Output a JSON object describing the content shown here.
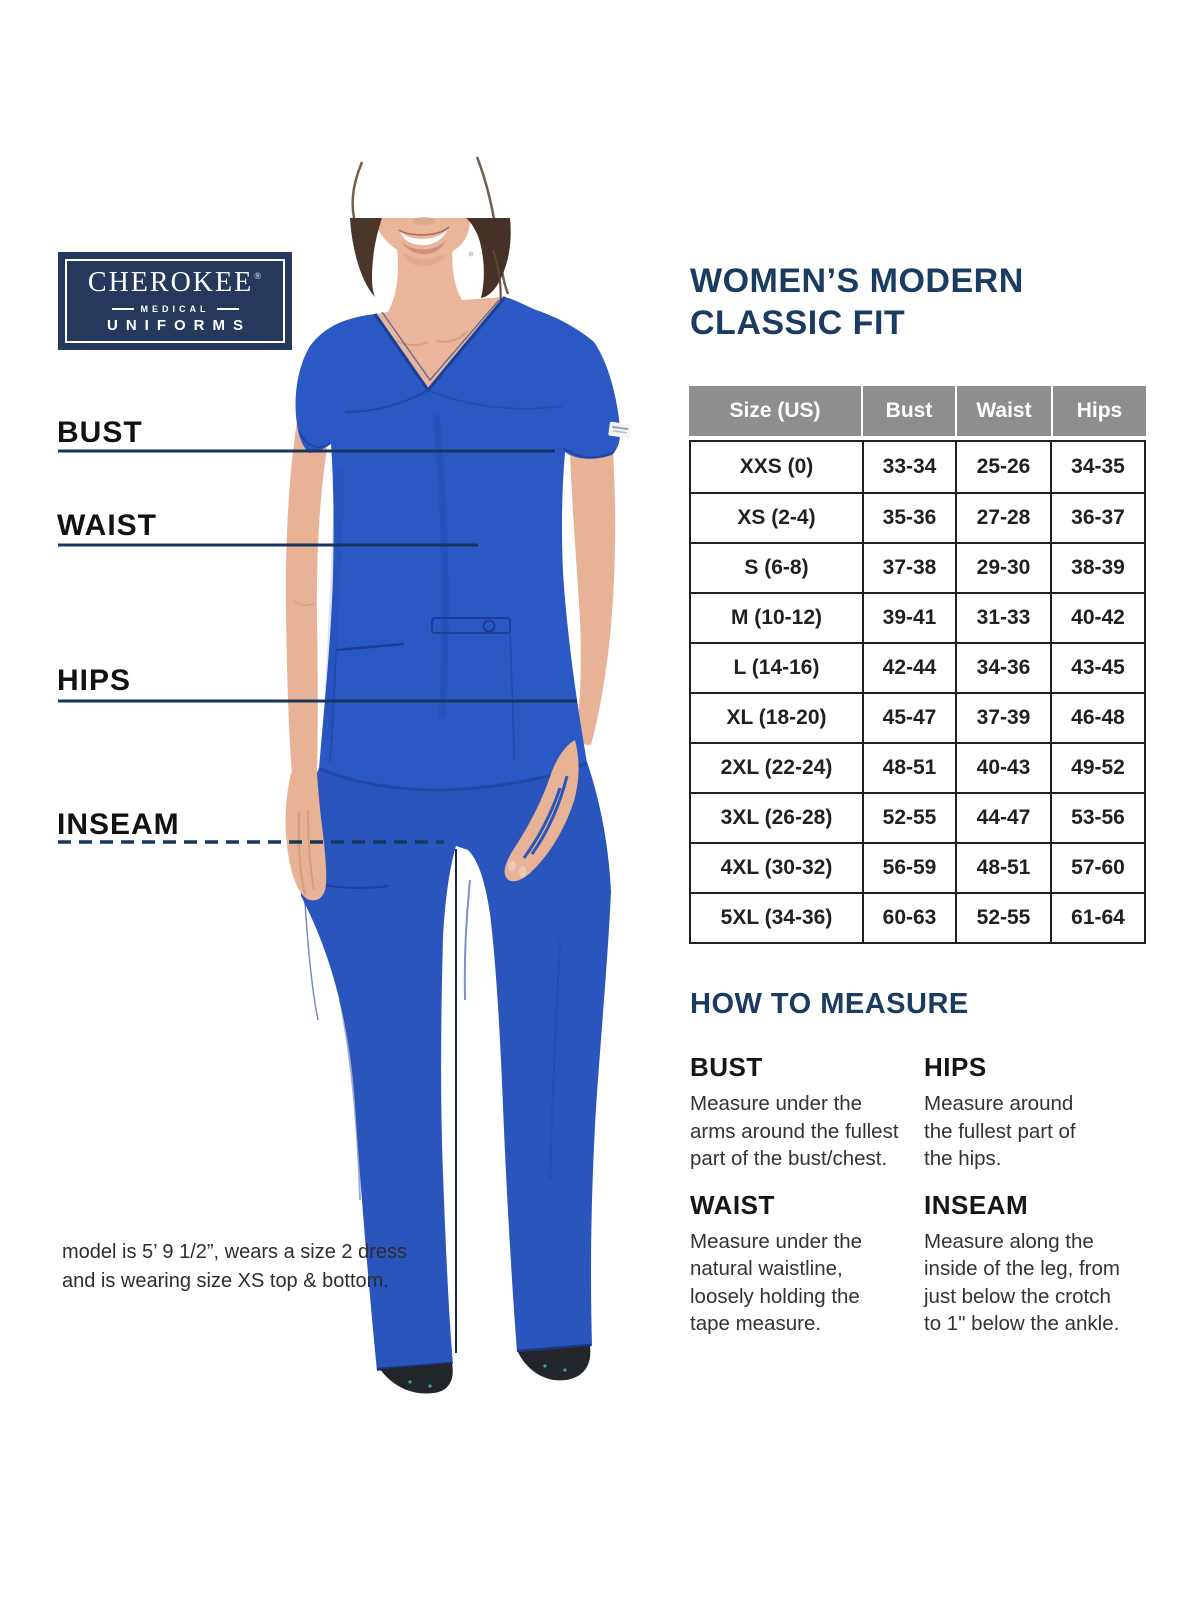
{
  "brand": {
    "name": "CHEROKEE",
    "reg": "®",
    "medical": "MEDICAL",
    "uniforms": "UNIFORMS"
  },
  "title": {
    "line1": "WOMEN’S MODERN",
    "line2": "CLASSIC FIT"
  },
  "figure_labels": {
    "bust": "BUST",
    "waist": "WAIST",
    "hips": "HIPS",
    "inseam": "INSEAM"
  },
  "size_table": {
    "headers": [
      "Size (US)",
      "Bust",
      "Waist",
      "Hips"
    ],
    "rows": [
      [
        "XXS (0)",
        "33-34",
        "25-26",
        "34-35"
      ],
      [
        "XS (2-4)",
        "35-36",
        "27-28",
        "36-37"
      ],
      [
        "S (6-8)",
        "37-38",
        "29-30",
        "38-39"
      ],
      [
        "M (10-12)",
        "39-41",
        "31-33",
        "40-42"
      ],
      [
        "L (14-16)",
        "42-44",
        "34-36",
        "43-45"
      ],
      [
        "XL (18-20)",
        "45-47",
        "37-39",
        "46-48"
      ],
      [
        "2XL (22-24)",
        "48-51",
        "40-43",
        "49-52"
      ],
      [
        "3XL (26-28)",
        "52-55",
        "44-47",
        "53-56"
      ],
      [
        "4XL (30-32)",
        "56-59",
        "48-51",
        "57-60"
      ],
      [
        "5XL (34-36)",
        "60-63",
        "52-55",
        "61-64"
      ]
    ]
  },
  "how_to_measure": {
    "heading": "HOW TO MEASURE",
    "sections": [
      {
        "label": "BUST",
        "lines": [
          "Measure under the",
          "arms around the fullest",
          "part of the bust/chest."
        ]
      },
      {
        "label": "HIPS",
        "lines": [
          "Measure around",
          "the fullest part of",
          "the hips."
        ]
      },
      {
        "label": "WAIST",
        "lines": [
          "Measure under the",
          "natural waistline,",
          "loosely holding the",
          "tape measure."
        ]
      },
      {
        "label": "INSEAM",
        "lines": [
          "Measure along the",
          "inside of the leg, from",
          "just below the crotch",
          "to 1\" below the ankle."
        ]
      }
    ]
  },
  "caption": {
    "lines": [
      "model is 5’ 9 1/2”, wears a size 2 dress",
      "and is wearing size XS top & bottom."
    ]
  },
  "colors": {
    "navy": "#1b3c62",
    "line_navy": "#17365c",
    "table_header_gray": "#8d8e90",
    "table_ink": "#231f20",
    "scrub_blue": "#2a58c4"
  }
}
